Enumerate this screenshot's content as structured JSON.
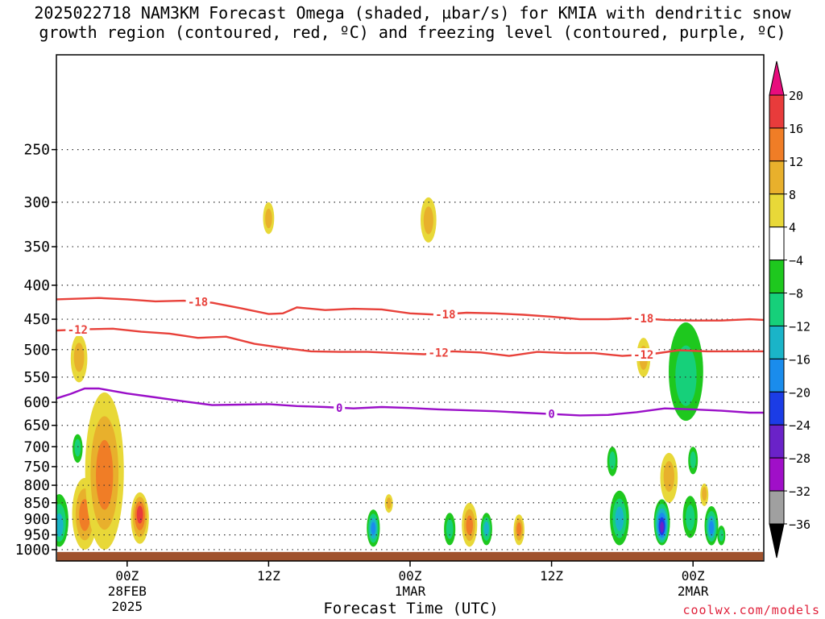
{
  "title": {
    "line1": "2025022718 NAM3KM Forecast Omega (shaded, µbar/s) for KMIA with dendritic snow",
    "line2": "growth region (contoured, red, ºC) and freezing level (contoured, purple, ºC)"
  },
  "credit": "coolwx.com/models",
  "chart_data": {
    "type": "contour",
    "title": "2025022718 NAM3KM Forecast Omega (shaded, µbar/s) for KMIA with dendritic snow growth region (contoured, red, ºC) and freezing level (contoured, purple, ºC)",
    "xlabel": "Forecast Time (UTC)",
    "ylabel": "",
    "x_range_hours_from_28FEB00Z": [
      -5,
      45
    ],
    "y_axis": {
      "scale": "log-pressure",
      "inverted": true,
      "range_hPa": [
        1040,
        180
      ],
      "ticks": [
        250,
        300,
        350,
        400,
        450,
        500,
        550,
        600,
        650,
        700,
        750,
        800,
        850,
        900,
        950,
        1000
      ]
    },
    "x_ticks": [
      {
        "hour": 0,
        "label": "00Z",
        "sub1": "28FEB",
        "sub2": "2025"
      },
      {
        "hour": 10,
        "label": "12Z",
        "sub1": "",
        "sub2": ""
      },
      {
        "hour": 20,
        "label": "00Z",
        "sub1": "1MAR",
        "sub2": ""
      },
      {
        "hour": 30,
        "label": "12Z",
        "sub1": "",
        "sub2": ""
      },
      {
        "hour": 40,
        "label": "00Z",
        "sub1": "2MAR",
        "sub2": ""
      }
    ],
    "grid": "dotted horizontal at pressure ticks",
    "contours": [
      {
        "value": -18,
        "color": "#e8413a",
        "labels_at_hours": [
          5,
          22.5,
          36.5
        ],
        "points": [
          [
            -5,
            420
          ],
          [
            -2,
            418
          ],
          [
            0,
            420
          ],
          [
            2,
            423
          ],
          [
            4,
            422
          ],
          [
            6,
            425
          ],
          [
            8,
            433
          ],
          [
            10,
            442
          ],
          [
            11,
            441
          ],
          [
            12,
            432
          ],
          [
            14,
            436
          ],
          [
            16,
            434
          ],
          [
            18,
            435
          ],
          [
            20,
            441
          ],
          [
            22,
            443
          ],
          [
            24,
            440
          ],
          [
            26,
            441
          ],
          [
            28,
            443
          ],
          [
            30,
            446
          ],
          [
            32,
            450
          ],
          [
            34,
            450
          ],
          [
            36,
            448
          ],
          [
            38,
            451
          ],
          [
            40,
            452
          ],
          [
            42,
            452
          ],
          [
            44,
            450
          ],
          [
            45,
            451
          ]
        ]
      },
      {
        "value": -12,
        "color": "#e8413a",
        "labels_at_hours": [
          -3.5,
          22,
          36.5
        ],
        "points": [
          [
            -5,
            468
          ],
          [
            -3,
            466
          ],
          [
            -1,
            465
          ],
          [
            1,
            470
          ],
          [
            3,
            473
          ],
          [
            5,
            480
          ],
          [
            7,
            478
          ],
          [
            9,
            490
          ],
          [
            11,
            497
          ],
          [
            13,
            503
          ],
          [
            15,
            504
          ],
          [
            17,
            504
          ],
          [
            19,
            506
          ],
          [
            21,
            508
          ],
          [
            23,
            503
          ],
          [
            25,
            505
          ],
          [
            27,
            511
          ],
          [
            29,
            504
          ],
          [
            31,
            506
          ],
          [
            33,
            506
          ],
          [
            35,
            511
          ],
          [
            37,
            508
          ],
          [
            39,
            501
          ],
          [
            41,
            503
          ],
          [
            43,
            503
          ],
          [
            45,
            503
          ]
        ]
      },
      {
        "value": 0,
        "color": "#9a0fc8",
        "labels_at_hours": [
          15,
          30
        ],
        "points": [
          [
            -5,
            592
          ],
          [
            -4,
            583
          ],
          [
            -3,
            572
          ],
          [
            -2,
            572
          ],
          [
            0,
            582
          ],
          [
            2,
            590
          ],
          [
            4,
            598
          ],
          [
            6,
            606
          ],
          [
            8,
            605
          ],
          [
            10,
            604
          ],
          [
            12,
            608
          ],
          [
            14,
            610
          ],
          [
            16,
            613
          ],
          [
            18,
            610
          ],
          [
            20,
            612
          ],
          [
            22,
            615
          ],
          [
            24,
            617
          ],
          [
            26,
            619
          ],
          [
            28,
            622
          ],
          [
            30,
            625
          ],
          [
            32,
            628
          ],
          [
            34,
            627
          ],
          [
            36,
            621
          ],
          [
            38,
            613
          ],
          [
            40,
            615
          ],
          [
            42,
            618
          ],
          [
            44,
            622
          ],
          [
            45,
            622
          ]
        ]
      }
    ],
    "shaded_omega_features": [
      {
        "hour": -4.8,
        "p_center": 930,
        "p_top": 825,
        "p_bottom": 990,
        "max_abs": 12,
        "sign": "negative"
      },
      {
        "hour": -3.5,
        "p_center": 700,
        "p_top": 670,
        "p_bottom": 740,
        "max_abs": 8,
        "sign": "negative"
      },
      {
        "hour": -3.0,
        "p_center": 890,
        "p_top": 780,
        "p_bottom": 1000,
        "max_abs": 14,
        "sign": "positive"
      },
      {
        "hour": -1.6,
        "p_center": 780,
        "p_top": 580,
        "p_bottom": 1000,
        "max_abs": 14,
        "sign": "positive"
      },
      {
        "hour": 0.8,
        "p_center": 890,
        "p_top": 860,
        "p_bottom": 920,
        "max_abs": 8,
        "sign": "negative"
      },
      {
        "hour": 0.9,
        "p_center": 880,
        "p_top": 820,
        "p_bottom": 980,
        "max_abs": 16,
        "sign": "positive"
      },
      {
        "hour": -3.4,
        "p_center": 510,
        "p_top": 475,
        "p_bottom": 560,
        "max_abs": 8,
        "sign": "positive"
      },
      {
        "hour": 10.0,
        "p_center": 318,
        "p_top": 300,
        "p_bottom": 335,
        "max_abs": 8,
        "sign": "positive"
      },
      {
        "hour": 17.4,
        "p_center": 930,
        "p_top": 870,
        "p_bottom": 990,
        "max_abs": 16,
        "sign": "negative"
      },
      {
        "hour": 18.5,
        "p_center": 850,
        "p_top": 825,
        "p_bottom": 880,
        "max_abs": 8,
        "sign": "positive"
      },
      {
        "hour": 21.3,
        "p_center": 320,
        "p_top": 295,
        "p_bottom": 345,
        "max_abs": 8,
        "sign": "positive"
      },
      {
        "hour": 22.8,
        "p_center": 930,
        "p_top": 880,
        "p_bottom": 985,
        "max_abs": 8,
        "sign": "negative"
      },
      {
        "hour": 24.2,
        "p_center": 920,
        "p_top": 850,
        "p_bottom": 990,
        "max_abs": 12,
        "sign": "positive"
      },
      {
        "hour": 25.4,
        "p_center": 930,
        "p_top": 880,
        "p_bottom": 985,
        "max_abs": 12,
        "sign": "negative"
      },
      {
        "hour": 27.7,
        "p_center": 930,
        "p_top": 885,
        "p_bottom": 985,
        "max_abs": 12,
        "sign": "positive"
      },
      {
        "hour": 34.3,
        "p_center": 730,
        "p_top": 700,
        "p_bottom": 775,
        "max_abs": 8,
        "sign": "negative"
      },
      {
        "hour": 34.8,
        "p_center": 900,
        "p_top": 815,
        "p_bottom": 985,
        "max_abs": 12,
        "sign": "negative"
      },
      {
        "hour": 36.5,
        "p_center": 515,
        "p_top": 480,
        "p_bottom": 550,
        "max_abs": 8,
        "sign": "positive"
      },
      {
        "hour": 37.8,
        "p_center": 930,
        "p_top": 840,
        "p_bottom": 985,
        "max_abs": 24,
        "sign": "negative"
      },
      {
        "hour": 38.3,
        "p_center": 770,
        "p_top": 715,
        "p_bottom": 850,
        "max_abs": 8,
        "sign": "positive"
      },
      {
        "hour": 39.8,
        "p_center": 900,
        "p_top": 830,
        "p_bottom": 960,
        "max_abs": 8,
        "sign": "negative"
      },
      {
        "hour": 39.5,
        "p_center": 560,
        "p_top": 455,
        "p_bottom": 640,
        "max_abs": 8,
        "sign": "negative"
      },
      {
        "hour": 41.3,
        "p_center": 930,
        "p_top": 860,
        "p_bottom": 985,
        "max_abs": 16,
        "sign": "negative"
      },
      {
        "hour": 40.0,
        "p_center": 730,
        "p_top": 700,
        "p_bottom": 770,
        "max_abs": 8,
        "sign": "negative"
      },
      {
        "hour": 42.0,
        "p_center": 950,
        "p_top": 920,
        "p_bottom": 985,
        "max_abs": 8,
        "sign": "negative"
      },
      {
        "hour": 40.8,
        "p_center": 820,
        "p_top": 795,
        "p_bottom": 860,
        "max_abs": 8,
        "sign": "positive"
      }
    ],
    "ground_color": "#a0522d",
    "colorbar": {
      "labels": [
        "20",
        "16",
        "12",
        "8",
        "4",
        "−4",
        "−8",
        "−12",
        "−16",
        "−20",
        "−24",
        "−28",
        "−32",
        "−36"
      ],
      "colors": [
        "#e80c7d",
        "#e83b3b",
        "#f07d26",
        "#e8b02c",
        "#e8d838",
        "#ffffff",
        "#1ec81e",
        "#16d07a",
        "#1ab4c8",
        "#1a8cec",
        "#1b3ce6",
        "#6a22c8",
        "#a00fc8",
        "#a0a0a0",
        "#000000"
      ]
    }
  }
}
